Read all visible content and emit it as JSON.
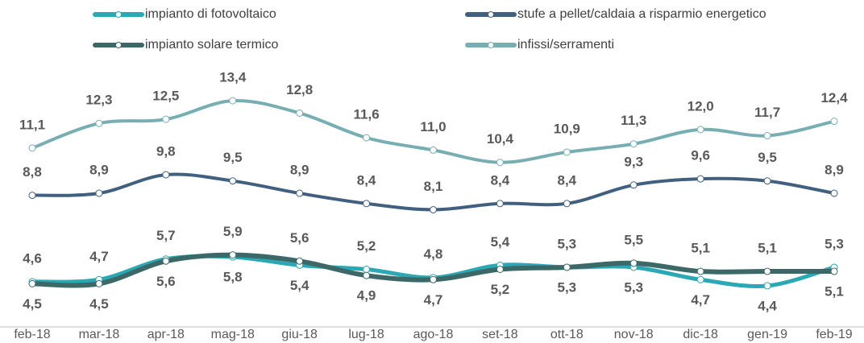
{
  "chart_data": {
    "type": "line",
    "categories": [
      "feb-18",
      "mar-18",
      "apr-18",
      "mag-18",
      "giu-18",
      "lug-18",
      "ago-18",
      "set-18",
      "ott-18",
      "nov-18",
      "dic-18",
      "gen-19",
      "feb-19"
    ],
    "ylim": [
      2.4,
      18.3
    ],
    "series": [
      {
        "name": "impianto di fotovoltaico",
        "color": "#2aa8b4",
        "values": [
          4.6,
          4.7,
          5.7,
          5.8,
          5.4,
          5.2,
          4.8,
          5.4,
          5.3,
          5.3,
          4.7,
          4.4,
          5.3
        ],
        "value_labels": [
          "4,6",
          "4,7",
          "5,7",
          "5,8",
          "5,4",
          "5,2",
          "4,8",
          "5,4",
          "5,3",
          "5,3",
          "4,7",
          "4,4",
          "5,3"
        ]
      },
      {
        "name": "stufe a pellet/caldaia a risparmio energetico",
        "color": "#41607f",
        "values": [
          8.8,
          8.9,
          9.8,
          9.5,
          8.9,
          8.4,
          8.1,
          8.4,
          8.4,
          9.3,
          9.6,
          9.5,
          8.9
        ],
        "value_labels": [
          "8,8",
          "8,9",
          "9,8",
          "9,5",
          "8,9",
          "8,4",
          "8,1",
          "8,4",
          "8,4",
          "9,3",
          "9,6",
          "9,5",
          "8,9"
        ]
      },
      {
        "name": "impianto solare termico",
        "color": "#3d6868",
        "values": [
          4.5,
          4.5,
          5.6,
          5.9,
          5.6,
          4.9,
          4.7,
          5.2,
          5.3,
          5.5,
          5.1,
          5.1,
          5.1
        ],
        "value_labels": [
          "4,5",
          "4,5",
          "5,6",
          "5,9",
          "5,6",
          "4,9",
          "4,7",
          "5,2",
          "5,3",
          "5,5",
          "5,1",
          "5,1",
          "5,1"
        ]
      },
      {
        "name": "infissi/serramenti",
        "color": "#76aeb2",
        "values": [
          11.1,
          12.3,
          12.5,
          13.4,
          12.8,
          11.6,
          11.0,
          10.4,
          10.9,
          11.3,
          12.0,
          11.7,
          12.4
        ],
        "value_labels": [
          "11,1",
          "12,3",
          "12,5",
          "13,4",
          "12,8",
          "11,6",
          "11,0",
          "10,4",
          "10,9",
          "11,3",
          "12,0",
          "11,7",
          "12,4"
        ]
      }
    ]
  }
}
